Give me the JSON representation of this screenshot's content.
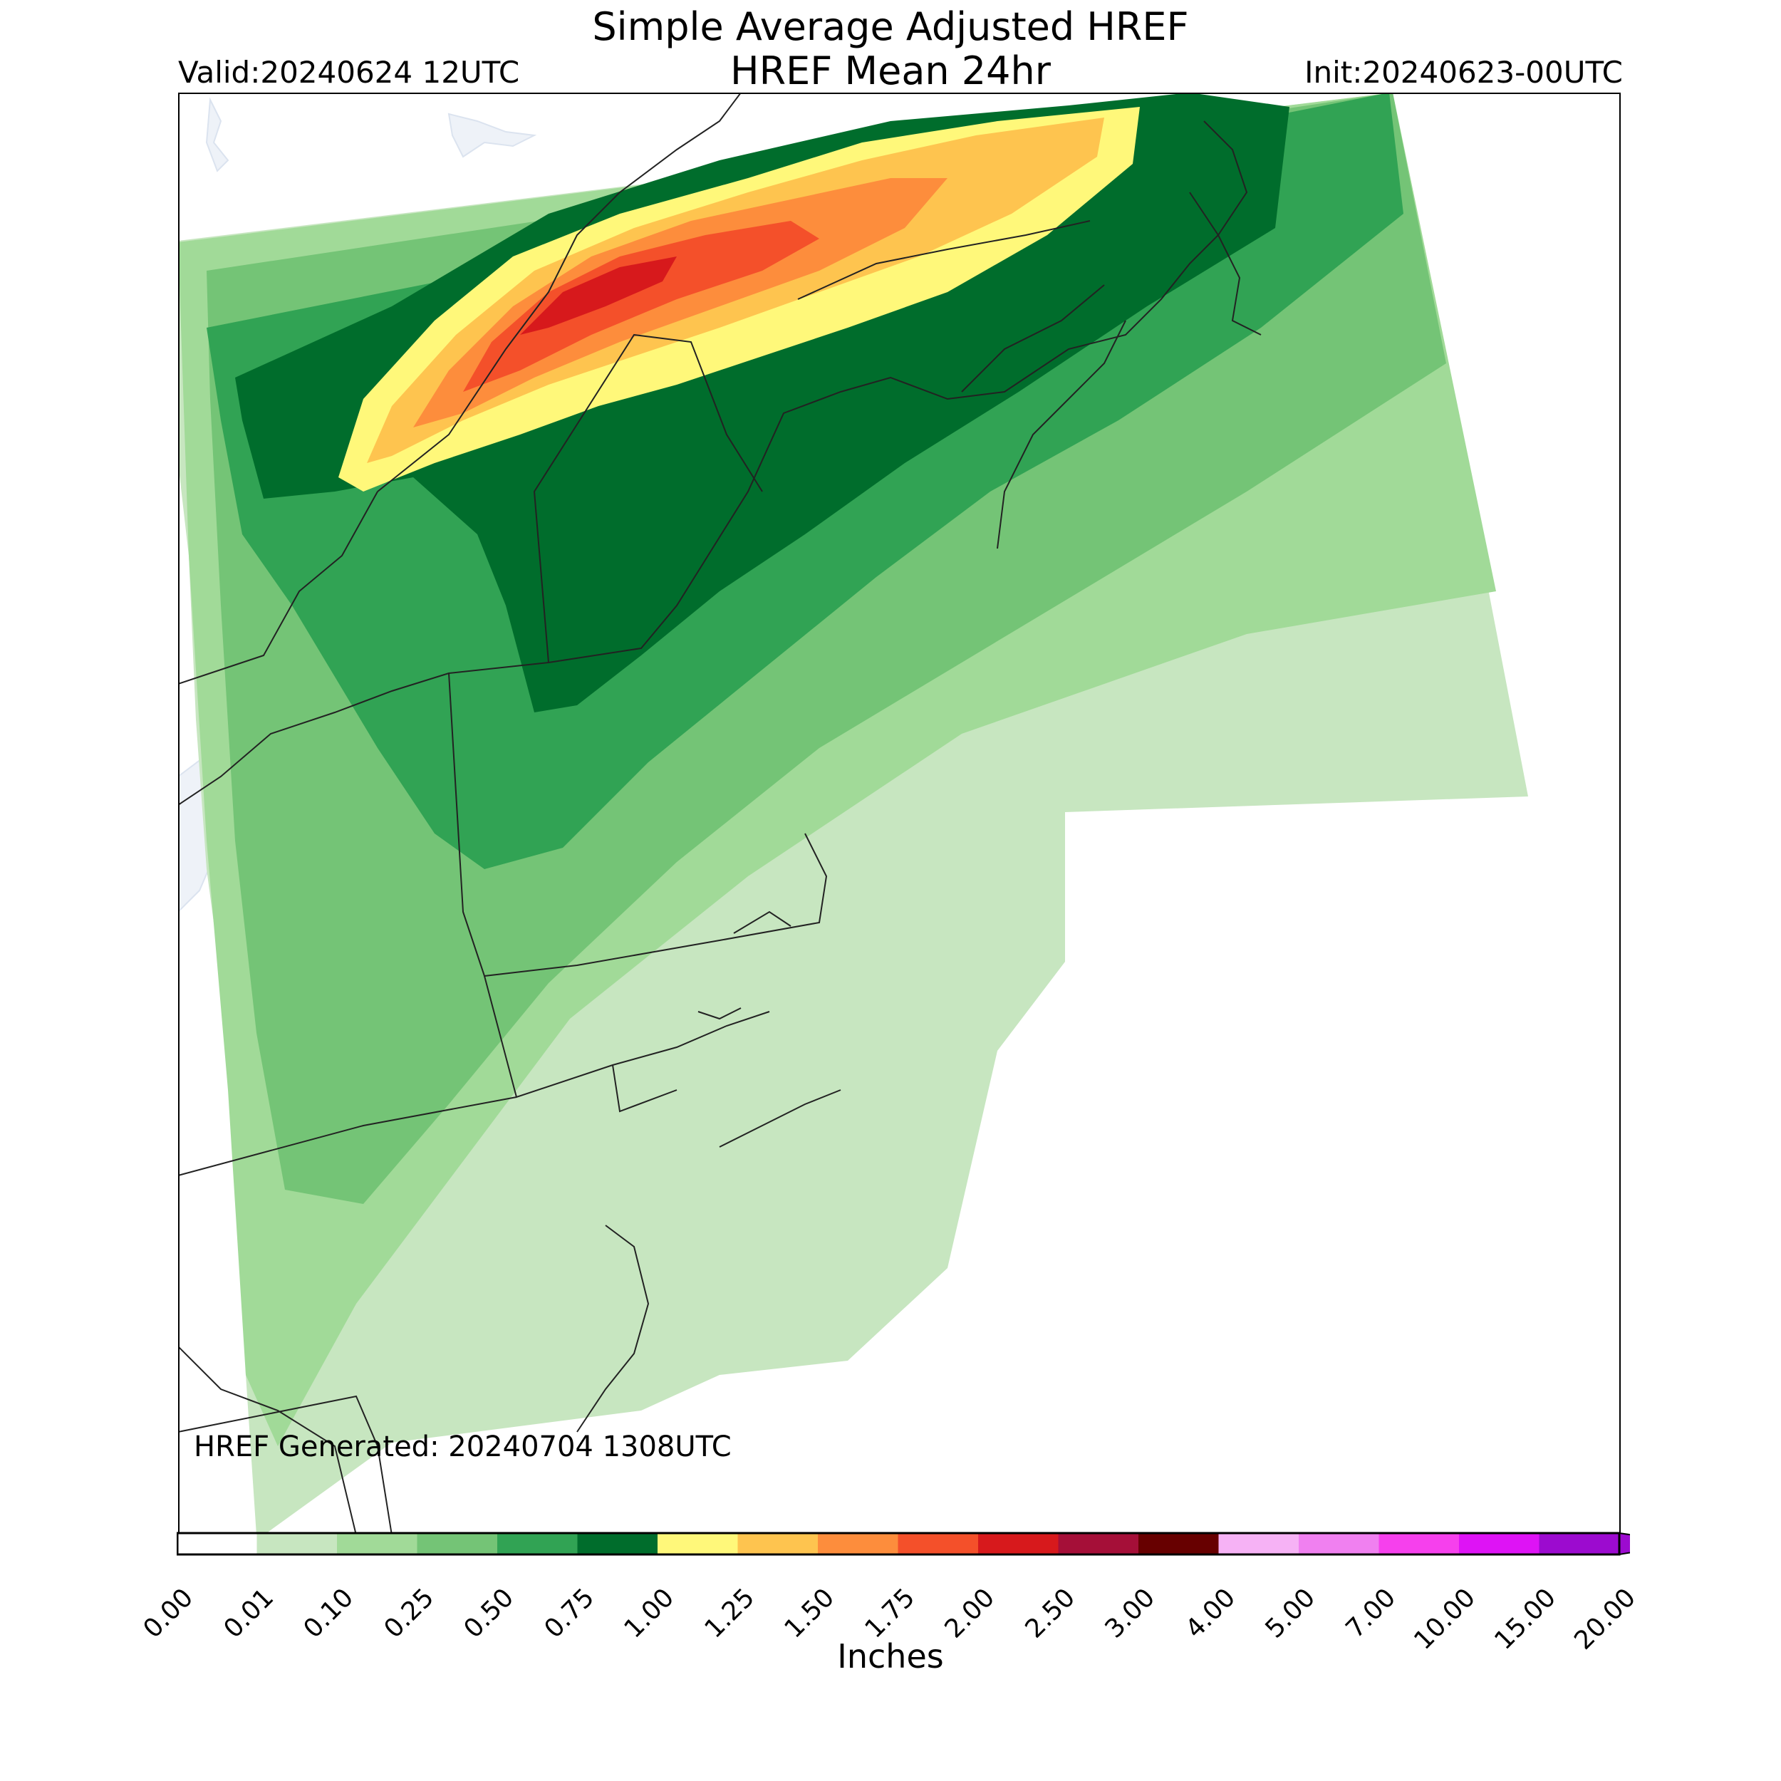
{
  "titles": {
    "line1": "Simple Average Adjusted HREF",
    "line2": "HREF Mean 24hr",
    "valid": "Valid:20240624 12UTC",
    "init": "Init:20240623-00UTC"
  },
  "footnote": "HREF Generated: 20240704 1308UTC",
  "colorbar": {
    "unit_label": "Inches",
    "ticks": [
      "0.00",
      "0.01",
      "0.10",
      "0.25",
      "0.50",
      "0.75",
      "1.00",
      "1.25",
      "1.50",
      "1.75",
      "2.00",
      "2.50",
      "3.00",
      "4.00",
      "5.00",
      "7.00",
      "10.00",
      "15.00",
      "20.00"
    ],
    "colors": [
      "#ffffff",
      "#c7e6c0",
      "#a1da98",
      "#74c476",
      "#31a354",
      "#006d2c",
      "#fff87a",
      "#fec44f",
      "#fd8d3c",
      "#f4502a",
      "#d7191c",
      "#a50f38",
      "#670000",
      "#f6b2f5",
      "#f080f0",
      "#f640ed",
      "#de13f5",
      "#9c0bcf"
    ],
    "extend": "max"
  },
  "map": {
    "region": "Northeast US / Southeastern Canada",
    "colors": {
      "lightest": "#c7e6c0",
      "light": "#a1da98",
      "mid": "#74c476",
      "green": "#31a354",
      "dark": "#006d2c",
      "yellow": "#fff87a",
      "gold": "#fec44f",
      "orange": "#fd8d3c",
      "redorange": "#f4502a",
      "red": "#d7191c",
      "water": "#eef2f8",
      "border": "#000000"
    }
  }
}
